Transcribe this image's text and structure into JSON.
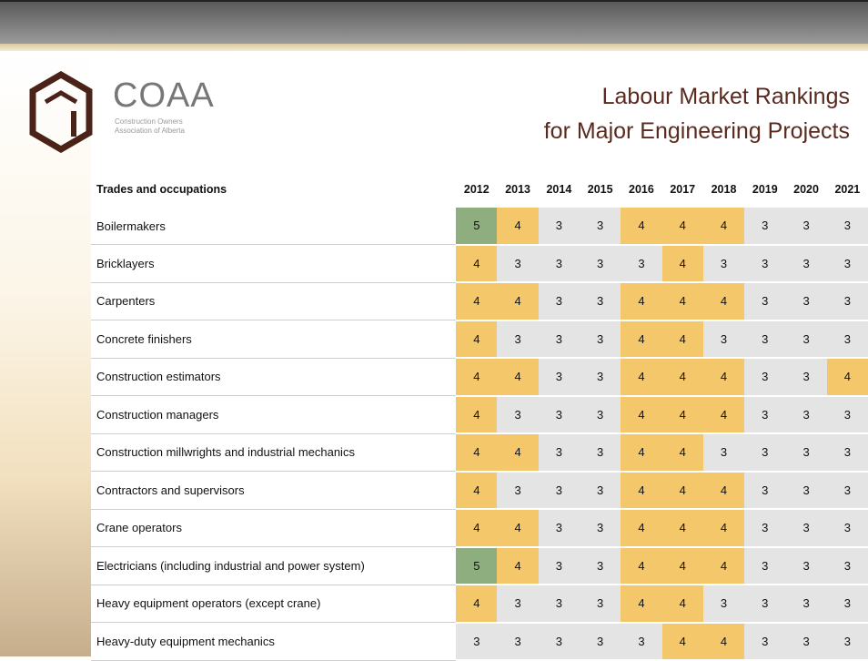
{
  "logo": {
    "name": "COAA",
    "tagline": [
      "Construction Owners",
      "Association of Alberta"
    ]
  },
  "title": [
    "Labour Market Rankings",
    "for Major Engineering Projects"
  ],
  "table": {
    "header": [
      "Trades and occupations",
      "2012",
      "2013",
      "2014",
      "2015",
      "2016",
      "2017",
      "2018",
      "2019",
      "2020",
      "2021"
    ],
    "rows": [
      {
        "label": "Boilermakers",
        "values": [
          5,
          4,
          3,
          3,
          4,
          4,
          4,
          3,
          3,
          3
        ]
      },
      {
        "label": "Bricklayers",
        "values": [
          4,
          3,
          3,
          3,
          3,
          4,
          3,
          3,
          3,
          3
        ]
      },
      {
        "label": "Carpenters",
        "values": [
          4,
          4,
          3,
          3,
          4,
          4,
          4,
          3,
          3,
          3
        ]
      },
      {
        "label": "Concrete finishers",
        "values": [
          4,
          3,
          3,
          3,
          4,
          4,
          3,
          3,
          3,
          3
        ]
      },
      {
        "label": "Construction estimators",
        "values": [
          4,
          4,
          3,
          3,
          4,
          4,
          4,
          3,
          3,
          4
        ]
      },
      {
        "label": "Construction managers",
        "values": [
          4,
          3,
          3,
          3,
          4,
          4,
          4,
          3,
          3,
          3
        ]
      },
      {
        "label": "Construction millwrights and industrial mechanics",
        "values": [
          4,
          4,
          3,
          3,
          4,
          4,
          3,
          3,
          3,
          3
        ]
      },
      {
        "label": "Contractors and supervisors",
        "values": [
          4,
          3,
          3,
          3,
          4,
          4,
          4,
          3,
          3,
          3
        ]
      },
      {
        "label": "Crane operators",
        "values": [
          4,
          4,
          3,
          3,
          4,
          4,
          4,
          3,
          3,
          3
        ]
      },
      {
        "label": "Electricians (including industrial and power system)",
        "values": [
          5,
          4,
          3,
          3,
          4,
          4,
          4,
          3,
          3,
          3
        ]
      },
      {
        "label": "Heavy equipment operators (except crane)",
        "values": [
          4,
          3,
          3,
          3,
          4,
          4,
          3,
          3,
          3,
          3
        ]
      },
      {
        "label": "Heavy-duty equipment mechanics",
        "values": [
          3,
          3,
          3,
          3,
          3,
          4,
          4,
          3,
          3,
          3
        ]
      }
    ]
  }
}
